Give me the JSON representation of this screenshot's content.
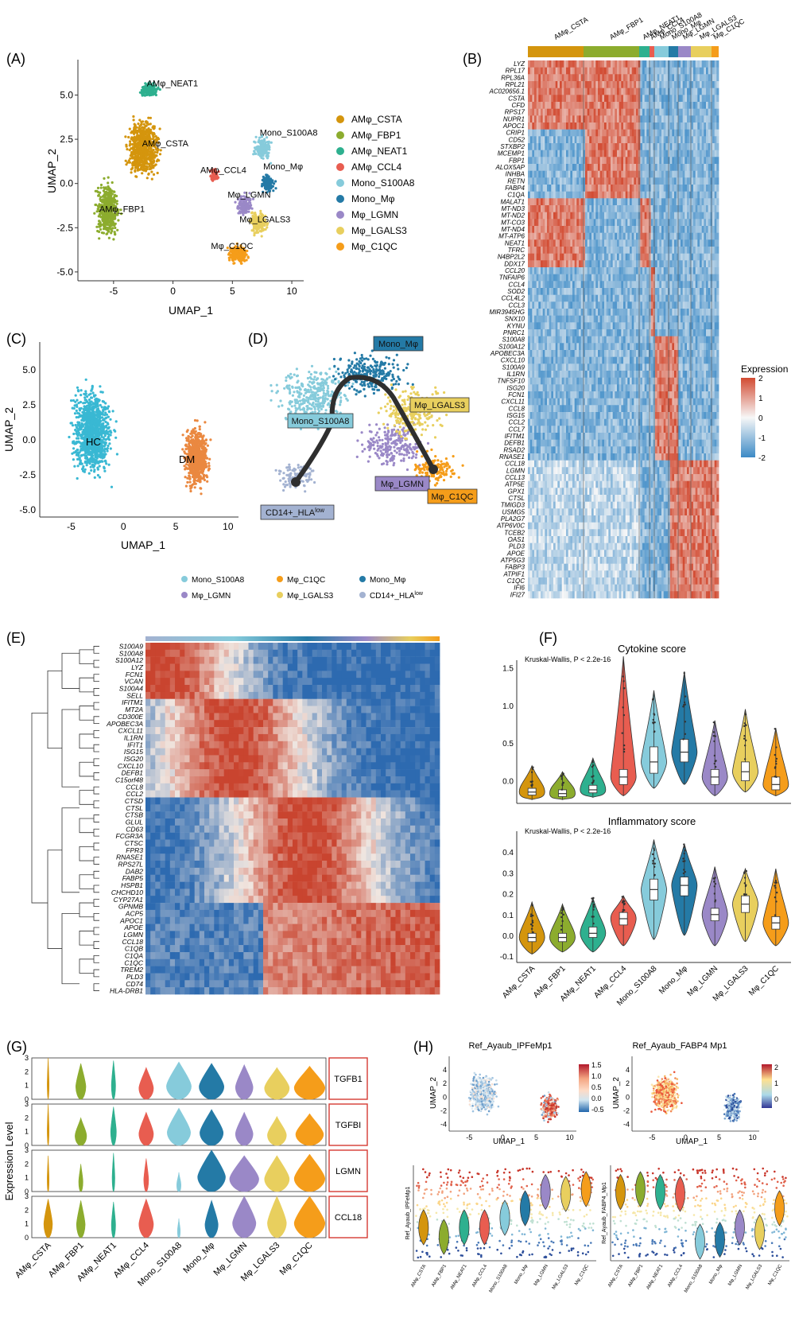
{
  "colors": {
    "AMφ_CSTA": "#d4950d",
    "AMφ_FBP1": "#8cac2e",
    "AMφ_NEAT1": "#2eb08f",
    "AMφ_CCL4": "#e85d50",
    "Mono_S100A8": "#86cbdb",
    "Mono_Mφ": "#247aa6",
    "Mφ_LGMN": "#9a88c7",
    "Mφ_LGALS3": "#e8cf5e",
    "Mφ_C1QC": "#f59d1a",
    "HC": "#39b8d3",
    "DM": "#ea8840",
    "CD14": "#a3b2d1",
    "heat_high": "#d24b32",
    "heat_mid": "#f7f7f7",
    "heat_low": "#3c8ac6"
  },
  "panelA": {
    "label": "(A)",
    "xlabel": "UMAP_1",
    "ylabel": "UMAP_2",
    "xticks": [
      "-5",
      "0",
      "5",
      "10"
    ],
    "yticks": [
      "5.0",
      "2.5",
      "0.0",
      "-2.5",
      "-5.0"
    ],
    "cluster_labels": [
      "AMφ_NEAT1",
      "AMφ_CSTA",
      "AMφ_CCL4",
      "Mono_S100A8",
      "Mono_Mφ",
      "Mφ_LGMN",
      "AMφ_FBP1",
      "Mφ_LGALS3",
      "Mφ_C1QC"
    ],
    "legend": [
      "AMφ_CSTA",
      "AMφ_FBP1",
      "AMφ_NEAT1",
      "AMφ_CCL4",
      "Mono_S100A8",
      "Mono_Mφ",
      "Mφ_LGMN",
      "Mφ_LGALS3",
      "Mφ_C1QC"
    ]
  },
  "panelB": {
    "label": "(B)",
    "column_groups": [
      "AMφ_CSTA",
      "AMφ_FBP1",
      "AMφ_NEAT1",
      "AMφ_CCL4",
      "Mono_S100A8",
      "Mono_Mφ",
      "Mφ_LGMN",
      "Mφ_LGALS3",
      "Mφ_C1QC"
    ],
    "genes": [
      "LYZ",
      "RPL17",
      "RPL36A",
      "RPL21",
      "AC020656.1",
      "CSTA",
      "CFD",
      "RPS17",
      "NUPR1",
      "APOC1",
      "CRIP1",
      "CD52",
      "STXBP2",
      "MCEMP1",
      "FBP1",
      "ALOX5AP",
      "INHBA",
      "RETN",
      "FABP4",
      "C1QA",
      "MALAT1",
      "MT-ND3",
      "MT-ND2",
      "MT-CO3",
      "MT-ND4",
      "MT-ATP6",
      "NEAT1",
      "TFRC",
      "N4BP2L2",
      "DDX17",
      "CCL20",
      "TNFAIP6",
      "CCL4",
      "SOD2",
      "CCL4L2",
      "CCL3",
      "MIR3945HG",
      "SNX10",
      "KYNU",
      "PNRC1",
      "S100A8",
      "S100A12",
      "APOBEC3A",
      "CXCL10",
      "S100A9",
      "IL1RN",
      "TNFSF10",
      "ISG20",
      "FCN1",
      "CXCL11",
      "CCL8",
      "ISG15",
      "CCL2",
      "CCL7",
      "IFITM1",
      "DEFB1",
      "RSAD2",
      "RNASE1",
      "CCL18",
      "LGMN",
      "CCL13",
      "ATP5E",
      "GPX1",
      "CTSL",
      "TMIGD3",
      "USMG5",
      "PLA2G7",
      "ATP6V0C",
      "TCEB2",
      "OAS1",
      "PLD3",
      "APOE",
      "ATP5G3",
      "FABP3",
      "ATPIF1",
      "C1QC",
      "IFI6",
      "IFI27"
    ],
    "legend_title": "Expression",
    "legend_ticks": [
      "2",
      "1",
      "0",
      "-1",
      "-2"
    ]
  },
  "panelC": {
    "label": "(C)",
    "xlabel": "UMAP_1",
    "ylabel": "UMAP_2",
    "xticks": [
      "-5",
      "0",
      "5",
      "10"
    ],
    "yticks": [
      "5.0",
      "2.5",
      "0.0",
      "-2.5",
      "-5.0"
    ],
    "labels": [
      "HC",
      "DM"
    ]
  },
  "panelD": {
    "label": "(D)",
    "boxes": [
      "Mono_Mφ",
      "Mono_S100A8",
      "Mφ_LGALS3",
      "Mφ_LGMN",
      "Mφ_C1QC",
      "CD14+_HLA",
      "low"
    ]
  },
  "panelE": {
    "label": "(E)",
    "legend": [
      "Mono_S100A8",
      "Mφ_C1QC",
      "Mono_Mφ",
      "Mφ_LGMN",
      "Mφ_LGALS3",
      "CD14+_HLA",
      "low"
    ],
    "genes": [
      "S100A9",
      "S100A8",
      "S100A12",
      "LYZ",
      "FCN1",
      "VCAN",
      "S100A4",
      "SELL",
      "IFITM1",
      "MT2A",
      "CD300E",
      "APOBEC3A",
      "CXCL11",
      "IL1RN",
      "IFIT1",
      "ISG15",
      "ISG20",
      "CXCL10",
      "DEFB1",
      "C15orf48",
      "CCL8",
      "CCL2",
      "CTSD",
      "CTSL",
      "CTSB",
      "GLUL",
      "CD63",
      "FCGR3A",
      "CTSC",
      "FPR3",
      "RNASE1",
      "RPS27L",
      "DAB2",
      "FABP5",
      "HSPB1",
      "CHCHD10",
      "CYP27A1",
      "GPNMB",
      "ACP5",
      "APOC1",
      "APOE",
      "LGMN",
      "CCL18",
      "C1QB",
      "C1QA",
      "C1QC",
      "TREM2",
      "PLD3",
      "CD74",
      "HLA-DRB1"
    ]
  },
  "panelF": {
    "label": "(F)",
    "title1": "Cytokine score",
    "stat1": "Kruskal-Wallis, P < 2.2e-16",
    "yticks1": [
      "1.5",
      "1.0",
      "0.5",
      "0.0"
    ],
    "title2": "Inflammatory score",
    "stat2": "Kruskal-Wallis, P < 2.2e-16",
    "yticks2": [
      "0.4",
      "0.3",
      "0.2",
      "0.1",
      "0.0",
      "-0.1"
    ],
    "categories": [
      "AMφ_CSTA",
      "AMφ_FBP1",
      "AMφ_NEAT1",
      "AMφ_CCL4",
      "Mono_S100A8",
      "Mono_Mφ",
      "Mφ_LGMN",
      "Mφ_LGALS3",
      "Mφ_C1QC"
    ]
  },
  "panelG": {
    "label": "(G)",
    "ylabel": "Expression Level",
    "genes": [
      "TGFB1",
      "TGFBI",
      "LGMN",
      "CCL18"
    ],
    "yticks": [
      "3",
      "2",
      "1",
      "0"
    ],
    "categories": [
      "AMφ_CSTA",
      "AMφ_FBP1",
      "AMφ_NEAT1",
      "AMφ_CCL4",
      "Mono_S100A8",
      "Mono_Mφ",
      "Mφ_LGMN",
      "Mφ_LGALS3",
      "Mφ_C1QC"
    ]
  },
  "panelH": {
    "label": "(H)",
    "title1": "Ref_Ayaub_IPFeMp1",
    "title2": "Ref_Ayaub_FABP4 Mp1",
    "xlabel": "UMAP_1",
    "ylabel": "UMAP_2",
    "xticks": [
      "-5",
      "0",
      "5",
      "10"
    ],
    "yticks": [
      "4",
      "2",
      "0",
      "-2",
      "-4"
    ],
    "legend1": [
      "1.5",
      "1.0",
      "0.5",
      "0.0",
      "-0.5"
    ],
    "legend2": [
      "2",
      "1",
      "0"
    ],
    "vylabel1": "Ref_Ayaub_IPFeMp1",
    "vylabel2": "Ref_Ayaub_FABP4_Mp1",
    "categories": [
      "AMφ_CSTA",
      "AMφ_FBP1",
      "AMφ_NEAT1",
      "AMφ_CCL4",
      "Mono_S100A8",
      "Mono_Mφ",
      "Mφ_LGMN",
      "Mφ_LGALS3",
      "Mφ_C1QC"
    ]
  },
  "chart_data": [
    {
      "type": "scatter",
      "panel": "A",
      "xlabel": "UMAP_1",
      "ylabel": "UMAP_2",
      "xlim": [
        -8,
        11
      ],
      "ylim": [
        -5.5,
        7
      ],
      "series": [
        {
          "name": "AMφ_CSTA",
          "center": [
            -2.5,
            2.0
          ]
        },
        {
          "name": "AMφ_FBP1",
          "center": [
            -5.5,
            -1.5
          ]
        },
        {
          "name": "AMφ_NEAT1",
          "center": [
            -2.0,
            5.3
          ]
        },
        {
          "name": "AMφ_CCL4",
          "center": [
            3.5,
            0.5
          ]
        },
        {
          "name": "Mono_S100A8",
          "center": [
            7.5,
            2.0
          ]
        },
        {
          "name": "Mono_Mφ",
          "center": [
            8.0,
            0.0
          ]
        },
        {
          "name": "Mφ_LGMN",
          "center": [
            6.0,
            -1.2
          ]
        },
        {
          "name": "Mφ_LGALS3",
          "center": [
            7.2,
            -2.2
          ]
        },
        {
          "name": "Mφ_C1QC",
          "center": [
            5.5,
            -4.0
          ]
        }
      ]
    },
    {
      "type": "scatter",
      "panel": "C",
      "xlabel": "UMAP_1",
      "ylabel": "UMAP_2",
      "xlim": [
        -8,
        11
      ],
      "ylim": [
        -5.5,
        7
      ],
      "series": [
        {
          "name": "HC",
          "center": [
            -3.0,
            0.5
          ]
        },
        {
          "name": "DM",
          "center": [
            7.0,
            -1.0
          ]
        }
      ]
    },
    {
      "type": "box",
      "panel": "F",
      "title": "Cytokine score",
      "ylim": [
        -0.3,
        1.6
      ],
      "categories": [
        "AMφ_CSTA",
        "AMφ_FBP1",
        "AMφ_NEAT1",
        "AMφ_CCL4",
        "Mono_S100A8",
        "Mono_Mφ",
        "Mφ_LGMN",
        "Mφ_LGALS3",
        "Mφ_C1QC"
      ],
      "median": [
        -0.15,
        -0.17,
        -0.12,
        0.05,
        0.25,
        0.38,
        0.05,
        0.12,
        -0.05
      ],
      "q1": [
        -0.19,
        -0.21,
        -0.16,
        -0.05,
        0.1,
        0.25,
        -0.05,
        0.0,
        -0.12
      ],
      "q3": [
        -0.1,
        -0.12,
        -0.06,
        0.15,
        0.45,
        0.55,
        0.15,
        0.25,
        0.05
      ],
      "min": [
        -0.25,
        -0.25,
        -0.22,
        -0.2,
        -0.1,
        -0.05,
        -0.2,
        -0.15,
        -0.2
      ],
      "max": [
        0.2,
        0.12,
        0.3,
        1.65,
        1.2,
        1.45,
        0.8,
        0.95,
        0.7
      ]
    },
    {
      "type": "box",
      "panel": "F",
      "title": "Inflammatory score",
      "ylim": [
        -0.13,
        0.5
      ],
      "categories": [
        "AMφ_CSTA",
        "AMφ_FBP1",
        "AMφ_NEAT1",
        "AMφ_CCL4",
        "Mono_S100A8",
        "Mono_Mφ",
        "Mφ_LGMN",
        "Mφ_LGALS3",
        "Mφ_C1QC"
      ],
      "median": [
        -0.01,
        -0.01,
        0.01,
        0.08,
        0.22,
        0.24,
        0.1,
        0.15,
        0.06
      ],
      "q1": [
        -0.03,
        -0.03,
        -0.01,
        0.05,
        0.17,
        0.19,
        0.07,
        0.11,
        0.03
      ],
      "q3": [
        0.01,
        0.01,
        0.04,
        0.11,
        0.27,
        0.28,
        0.13,
        0.19,
        0.09
      ],
      "min": [
        -0.09,
        -0.08,
        -0.08,
        -0.05,
        -0.02,
        0.0,
        -0.05,
        -0.03,
        -0.05
      ],
      "max": [
        0.16,
        0.15,
        0.18,
        0.19,
        0.46,
        0.44,
        0.33,
        0.32,
        0.32
      ]
    },
    {
      "type": "violin",
      "panel": "G",
      "ylim": [
        0,
        3
      ],
      "categories": [
        "AMφ_CSTA",
        "AMφ_FBP1",
        "AMφ_NEAT1",
        "AMφ_CCL4",
        "Mono_S100A8",
        "Mono_Mφ",
        "Mφ_LGMN",
        "Mφ_LGALS3",
        "Mφ_C1QC"
      ],
      "series": [
        {
          "name": "TGFB1",
          "max": [
            3.0,
            2.6,
            2.8,
            2.3,
            2.7,
            2.6,
            2.5,
            2.3,
            2.4
          ],
          "width": [
            0.02,
            0.3,
            0.1,
            0.45,
            0.8,
            0.8,
            0.55,
            0.8,
            1.0
          ]
        },
        {
          "name": "TGFBI",
          "max": [
            3.0,
            2.0,
            2.8,
            2.4,
            2.7,
            2.6,
            2.4,
            2.1,
            2.3
          ],
          "width": [
            0.02,
            0.35,
            0.15,
            0.45,
            0.75,
            0.75,
            0.55,
            0.6,
            0.9
          ]
        },
        {
          "name": "LGMN",
          "max": [
            2.6,
            2.0,
            2.8,
            2.4,
            1.4,
            3.0,
            2.6,
            2.6,
            2.7
          ],
          "width": [
            0.02,
            0.1,
            0.05,
            0.12,
            0.1,
            0.9,
            0.95,
            0.8,
            1.0
          ]
        },
        {
          "name": "CCL18",
          "max": [
            2.8,
            2.7,
            2.6,
            2.8,
            1.4,
            2.7,
            3.0,
            3.0,
            3.0
          ],
          "width": [
            0.25,
            0.25,
            0.1,
            0.45,
            0.05,
            0.4,
            0.75,
            0.6,
            1.0
          ]
        }
      ]
    },
    {
      "type": "scatter",
      "panel": "H",
      "title": "Ref_Ayaub_IPFeMp1",
      "xlabel": "UMAP_1",
      "ylabel": "UMAP_2",
      "colorscale": [
        -0.5,
        1.5
      ]
    },
    {
      "type": "scatter",
      "panel": "H",
      "title": "Ref_Ayaub_FABP4 Mp1",
      "xlabel": "UMAP_1",
      "ylabel": "UMAP_2",
      "colorscale": [
        -0.5,
        2.5
      ]
    }
  ]
}
